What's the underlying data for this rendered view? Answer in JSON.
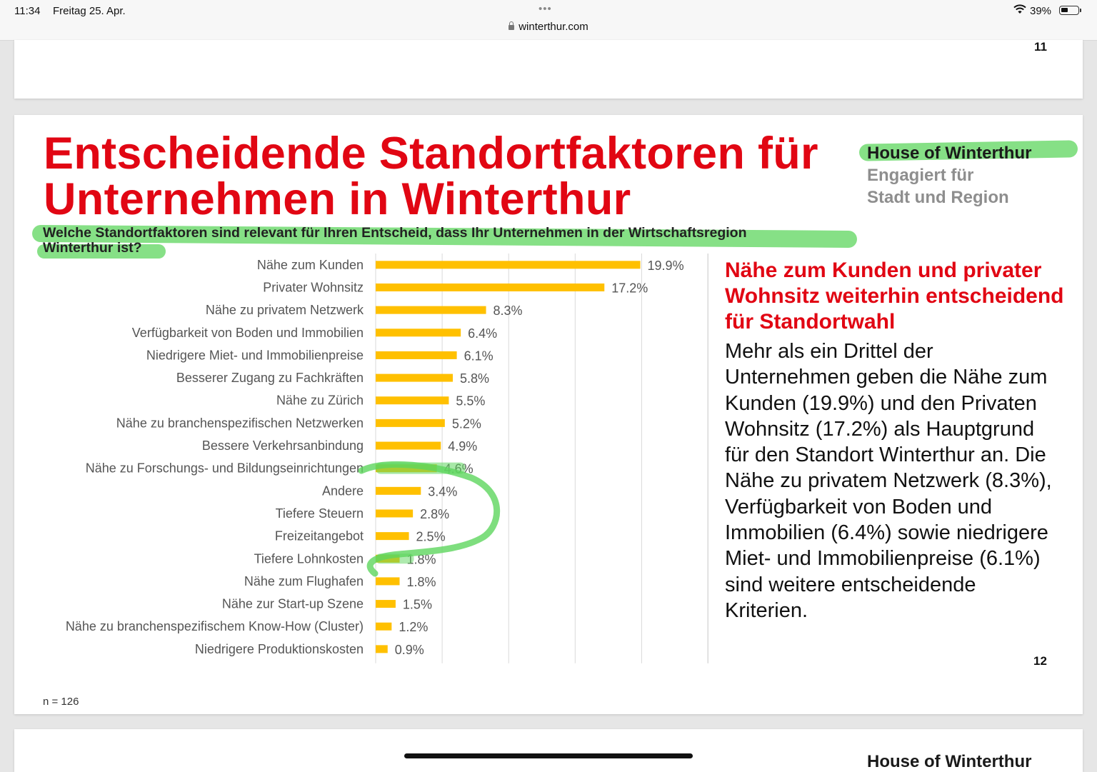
{
  "status_bar": {
    "time": "11:34",
    "date": "Freitag 25. Apr.",
    "dots": "•••",
    "url": "winterthur.com",
    "battery": "39%",
    "battery_level": 0.39
  },
  "pages": {
    "prev_page_number": "11",
    "current_page_number": "12",
    "next_page_brand": "House of Winterthur"
  },
  "slide": {
    "title_line1": "Entscheidende Standortfaktoren für",
    "title_line2": "Unternehmen in Winterthur",
    "brand": [
      "House of Winterthur",
      "Engagiert für",
      "Stadt und Region"
    ],
    "question_line1": "Welche Standortfaktoren sind relevant für Ihren Entscheid, dass Ihr Unternehmen in der Wirtschaftsregion",
    "question_line2": "Winterthur ist?",
    "side_heading_lines": [
      "Nähe zum Kunden und privater",
      "Wohnsitz weiterhin entscheidend",
      "für Standortwahl"
    ],
    "side_body_lines": [
      "Mehr als ein Drittel der",
      "Unternehmen geben die Nähe zum",
      "Kunden (19.9%) und den Privaten",
      "Wohnsitz (17.2%) als Hauptgrund",
      "für den Standort Winterthur an. Die",
      "Nähe zu privatem Netzwerk (8.3%),",
      "Verfügbarkeit von Boden und",
      "Immobilien (6.4%) sowie niedrigere",
      "Miet- und Immobilienpreise (6.1%)",
      "sind weitere entscheidende",
      "Kriterien."
    ],
    "n_note": "n = 126",
    "colors": {
      "title": "#e10613",
      "bar": "#ffc000",
      "highlighter": "#5ed65e"
    }
  },
  "chart_data": {
    "type": "bar",
    "orientation": "horizontal",
    "categories": [
      "Nähe zum Kunden",
      "Privater Wohnsitz",
      "Nähe zu privatem Netzwerk",
      "Verfügbarkeit von Boden und Immobilien",
      "Niedrigere Miet- und Immobilienpreise",
      "Besserer Zugang zu Fachkräften",
      "Nähe zu Zürich",
      "Nähe zu branchenspezifischen Netzwerken",
      "Bessere Verkehrsanbindung",
      "Nähe zu Forschungs- und Bildungseinrichtungen",
      "Andere",
      "Tiefere Steuern",
      "Freizeitangebot",
      "Tiefere Lohnkosten",
      "Nähe zum Flughafen",
      "Nähe zur Start-up Szene",
      "Nähe zu branchenspezifischem Know-How (Cluster)",
      "Niedrigere Produktionskosten"
    ],
    "values": [
      19.9,
      17.2,
      8.3,
      6.4,
      6.1,
      5.8,
      5.5,
      5.2,
      4.9,
      4.6,
      3.4,
      2.8,
      2.5,
      1.8,
      1.8,
      1.5,
      1.2,
      0.9
    ],
    "data_labels": [
      "19.9%",
      "17.2%",
      "8.3%",
      "6.4%",
      "6.1%",
      "5.8%",
      "5.5%",
      "5.2%",
      "4.9%",
      "4.6%",
      "3.4%",
      "2.8%",
      "2.5%",
      "1.8%",
      "1.8%",
      "1.5%",
      "1.2%",
      "0.9%"
    ],
    "xlim": [
      0,
      25
    ],
    "gridlines": [
      0,
      5,
      10,
      15,
      20,
      25
    ],
    "grid": true,
    "title": "",
    "xlabel": "",
    "ylabel": "",
    "bar_color": "#ffc000"
  }
}
